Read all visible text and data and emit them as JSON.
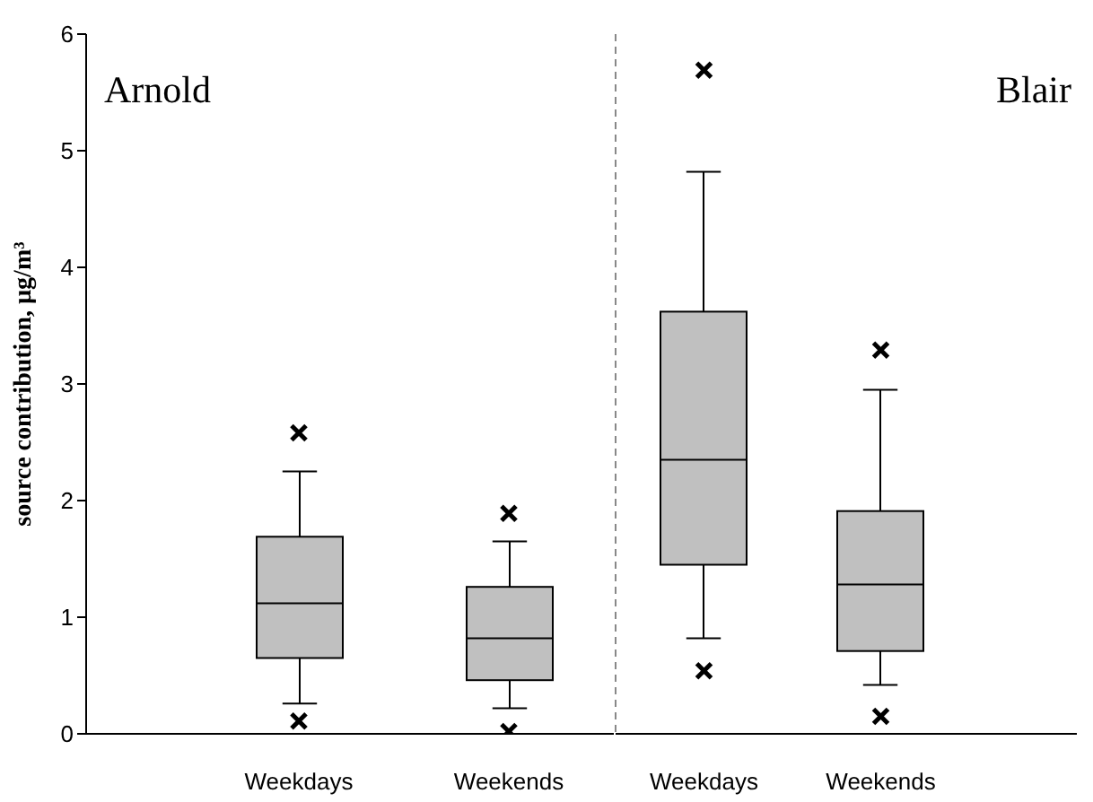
{
  "chart_data": [
    {
      "type": "box",
      "title": "Arnold",
      "ylabel": "source contribution, µg/m³",
      "categories": [
        "Weekdays",
        "Weekends"
      ],
      "ylim": [
        0,
        6
      ],
      "yticks": [
        0,
        1,
        2,
        3,
        4,
        5,
        6
      ],
      "marker": "cross",
      "series": [
        {
          "color": "#c0c0c0",
          "boxes": [
            {
              "low": 0.26,
              "q1": 0.65,
              "median": 1.12,
              "q3": 1.69,
              "high": 2.25,
              "outliers": [
                2.58,
                0.11
              ]
            },
            {
              "low": 0.22,
              "q1": 0.46,
              "median": 0.82,
              "q3": 1.26,
              "high": 1.65,
              "outliers": [
                1.89,
                0.02
              ]
            }
          ]
        }
      ]
    },
    {
      "type": "box",
      "title": "Blair",
      "categories": [
        "Weekdays",
        "Weekends"
      ],
      "ylim": [
        0,
        6
      ],
      "yticks": [
        0,
        1,
        2,
        3,
        4,
        5,
        6
      ],
      "tick_labels": "x",
      "marker": "cross",
      "series": [
        {
          "color": "#c0c0c0",
          "boxes": [
            {
              "low": 0.82,
              "q1": 1.45,
              "median": 2.35,
              "q3": 3.62,
              "high": 4.82,
              "outliers": [
                5.69,
                0.54
              ]
            },
            {
              "low": 0.42,
              "q1": 0.71,
              "median": 1.28,
              "q3": 1.91,
              "high": 2.95,
              "outliers": [
                3.29,
                0.15
              ]
            }
          ]
        }
      ]
    }
  ]
}
